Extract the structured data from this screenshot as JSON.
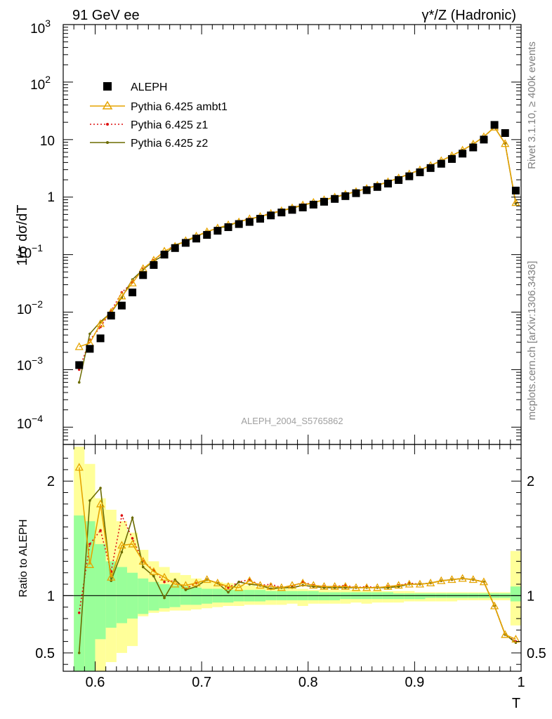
{
  "chart_data": [
    {
      "type": "scatter",
      "yscale": "log",
      "title_left": "91 GeV ee",
      "title_right": "γ*/Z (Hadronic)",
      "ylabel": "1/σ  dσ/dT",
      "xlim": [
        0.57,
        1.0
      ],
      "ylim": [
        5e-05,
        1000
      ],
      "grid": false,
      "legend_position": "top-left",
      "legend": [
        "ALEPH",
        "Pythia 6.425 ambt1",
        "Pythia 6.425 z1",
        "Pythia 6.425 z2"
      ],
      "ytick_labels": {
        "e3": "10",
        "e3sup": "3",
        "e2": "10",
        "e2sup": "2",
        "e1": "10",
        "e0": "1",
        "m1": "10",
        "m1sup": "−1",
        "m2": "10",
        "m2sup": "−2",
        "m3": "10",
        "m3sup": "−3",
        "m4": "10",
        "m4sup": "−4"
      },
      "watermark": "ALEPH_2004_S5765862",
      "side_label_top": "Rivet 3.1.10, ≥ 400k events",
      "side_label_bottom": "mcplots.cern.ch [arXiv:1306.3436]",
      "x": [
        0.585,
        0.595,
        0.605,
        0.615,
        0.625,
        0.635,
        0.645,
        0.655,
        0.665,
        0.675,
        0.685,
        0.695,
        0.705,
        0.715,
        0.725,
        0.735,
        0.745,
        0.755,
        0.765,
        0.775,
        0.785,
        0.795,
        0.805,
        0.815,
        0.825,
        0.835,
        0.845,
        0.855,
        0.865,
        0.875,
        0.885,
        0.895,
        0.905,
        0.915,
        0.925,
        0.935,
        0.945,
        0.955,
        0.965,
        0.975,
        0.985,
        0.995
      ],
      "series": [
        {
          "name": "ALEPH",
          "color": "#000000",
          "marker": "square",
          "values": [
            0.0012,
            0.0023,
            0.0035,
            0.0087,
            0.013,
            0.022,
            0.044,
            0.066,
            0.1,
            0.13,
            0.16,
            0.19,
            0.22,
            0.26,
            0.3,
            0.34,
            0.37,
            0.42,
            0.48,
            0.54,
            0.6,
            0.66,
            0.74,
            0.83,
            0.93,
            1.04,
            1.17,
            1.32,
            1.5,
            1.72,
            1.98,
            2.3,
            2.7,
            3.2,
            3.8,
            4.6,
            5.7,
            7.3,
            10,
            18,
            13,
            1.3
          ]
        },
        {
          "name": "Pythia 6.425 ambt1",
          "color": "#e6a400",
          "marker": "triangle",
          "values": [
            0.0025,
            0.0029,
            0.0063,
            0.01,
            0.019,
            0.032,
            0.057,
            0.08,
            0.115,
            0.14,
            0.175,
            0.21,
            0.25,
            0.29,
            0.33,
            0.37,
            0.42,
            0.46,
            0.52,
            0.58,
            0.65,
            0.73,
            0.81,
            0.9,
            1.0,
            1.12,
            1.25,
            1.41,
            1.6,
            1.85,
            2.15,
            2.53,
            2.97,
            3.55,
            4.3,
            5.25,
            6.55,
            8.35,
            11.2,
            16.4,
            8.5,
            0.8
          ]
        },
        {
          "name": "Pythia 6.425 z1",
          "color": "#dd1111",
          "marker": "dot",
          "values": [
            0.001,
            0.0033,
            0.0055,
            0.0105,
            0.022,
            0.033,
            0.057,
            0.08,
            0.112,
            0.147,
            0.17,
            0.21,
            0.25,
            0.29,
            0.32,
            0.38,
            0.42,
            0.46,
            0.53,
            0.58,
            0.65,
            0.74,
            0.81,
            0.9,
            1.0,
            1.13,
            1.25,
            1.42,
            1.61,
            1.85,
            2.15,
            2.55,
            2.97,
            3.55,
            4.3,
            5.25,
            6.55,
            8.35,
            11.2,
            16.4,
            8.6,
            0.78
          ]
        },
        {
          "name": "Pythia 6.425 z2",
          "color": "#6b6b00",
          "marker": "dot",
          "values": [
            0.0006,
            0.0042,
            0.0068,
            0.0098,
            0.018,
            0.037,
            0.055,
            0.077,
            0.098,
            0.148,
            0.168,
            0.205,
            0.25,
            0.29,
            0.31,
            0.38,
            0.41,
            0.46,
            0.51,
            0.58,
            0.64,
            0.72,
            0.8,
            0.89,
            0.99,
            1.11,
            1.25,
            1.41,
            1.6,
            1.84,
            2.14,
            2.52,
            2.96,
            3.55,
            4.3,
            5.25,
            6.55,
            8.35,
            11.2,
            16.4,
            8.5,
            0.77
          ]
        }
      ]
    },
    {
      "type": "line",
      "ylabel": "Ratio to ALEPH",
      "xlabel": "T",
      "xlim": [
        0.57,
        1.0
      ],
      "ylim": [
        0.34,
        2.32
      ],
      "xticks": [
        0.6,
        0.7,
        0.8,
        0.9,
        1.0
      ],
      "xtick_labels": [
        "0.6",
        "0.7",
        "0.8",
        "0.9",
        "1"
      ],
      "yticks": [
        0.5,
        1,
        2
      ],
      "ytick_labels": [
        "0.5",
        "1",
        "2"
      ],
      "band_colors": {
        "inner": "#99ff99",
        "outer": "#ffff99"
      },
      "x": [
        0.585,
        0.595,
        0.605,
        0.615,
        0.625,
        0.635,
        0.645,
        0.655,
        0.665,
        0.675,
        0.685,
        0.695,
        0.705,
        0.715,
        0.725,
        0.735,
        0.745,
        0.755,
        0.765,
        0.775,
        0.785,
        0.795,
        0.805,
        0.815,
        0.825,
        0.835,
        0.845,
        0.855,
        0.865,
        0.875,
        0.885,
        0.895,
        0.905,
        0.915,
        0.925,
        0.935,
        0.945,
        0.955,
        0.965,
        0.975,
        0.985,
        0.995
      ],
      "band_inner_lo": [
        0.3,
        0.3,
        0.62,
        0.72,
        0.76,
        0.8,
        0.84,
        0.87,
        0.89,
        0.9,
        0.92,
        0.92,
        0.93,
        0.94,
        0.94,
        0.95,
        0.95,
        0.95,
        0.96,
        0.96,
        0.96,
        0.96,
        0.96,
        0.96,
        0.96,
        0.97,
        0.97,
        0.97,
        0.97,
        0.97,
        0.97,
        0.97,
        0.97,
        0.98,
        0.98,
        0.98,
        0.98,
        0.98,
        0.98,
        0.98,
        0.98,
        0.95
      ],
      "band_inner_hi": [
        1.7,
        1.65,
        1.45,
        1.3,
        1.25,
        1.2,
        1.15,
        1.12,
        1.1,
        1.09,
        1.08,
        1.07,
        1.06,
        1.06,
        1.05,
        1.05,
        1.05,
        1.05,
        1.04,
        1.04,
        1.04,
        1.04,
        1.04,
        1.03,
        1.03,
        1.03,
        1.03,
        1.03,
        1.03,
        1.03,
        1.02,
        1.02,
        1.02,
        1.02,
        1.02,
        1.02,
        1.02,
        1.02,
        1.02,
        1.02,
        1.02,
        1.08
      ],
      "band_outer_lo": [
        0.3,
        0.3,
        0.3,
        0.42,
        0.5,
        0.56,
        0.82,
        0.85,
        0.86,
        0.87,
        0.87,
        0.88,
        0.89,
        0.9,
        0.91,
        0.91,
        0.92,
        0.92,
        0.92,
        0.92,
        0.93,
        0.91,
        0.93,
        0.93,
        0.93,
        0.93,
        0.94,
        0.93,
        0.94,
        0.94,
        0.94,
        0.95,
        0.95,
        0.95,
        0.95,
        0.95,
        0.96,
        0.96,
        0.96,
        0.96,
        0.96,
        0.74
      ],
      "band_outer_hi": [
        2.3,
        2.15,
        1.85,
        1.75,
        1.65,
        1.55,
        1.4,
        1.3,
        1.25,
        1.2,
        1.18,
        1.15,
        1.13,
        1.12,
        1.11,
        1.1,
        1.09,
        1.08,
        1.07,
        1.07,
        1.06,
        1.06,
        1.05,
        1.05,
        1.05,
        1.05,
        1.05,
        1.04,
        1.04,
        1.04,
        1.04,
        1.04,
        1.03,
        1.03,
        1.03,
        1.03,
        1.03,
        1.03,
        1.03,
        1.03,
        1.03,
        1.39
      ],
      "series": [
        {
          "name": "Pythia 6.425 ambt1",
          "color": "#e6a400",
          "marker": "triangle",
          "values": [
            2.12,
            1.27,
            1.8,
            1.16,
            1.44,
            1.45,
            1.3,
            1.21,
            1.16,
            1.1,
            1.09,
            1.11,
            1.14,
            1.11,
            1.08,
            1.07,
            1.13,
            1.09,
            1.08,
            1.07,
            1.09,
            1.11,
            1.09,
            1.08,
            1.08,
            1.08,
            1.07,
            1.07,
            1.07,
            1.08,
            1.09,
            1.1,
            1.1,
            1.11,
            1.13,
            1.14,
            1.15,
            1.14,
            1.12,
            0.91,
            0.66,
            0.62
          ]
        },
        {
          "name": "Pythia 6.425 z1",
          "color": "#dd1111",
          "marker": "dot",
          "values": [
            0.85,
            1.45,
            1.57,
            1.21,
            1.7,
            1.5,
            1.3,
            1.22,
            1.12,
            1.13,
            1.06,
            1.11,
            1.14,
            1.11,
            1.07,
            1.12,
            1.14,
            1.09,
            1.1,
            1.07,
            1.08,
            1.12,
            1.09,
            1.08,
            1.08,
            1.09,
            1.07,
            1.08,
            1.07,
            1.08,
            1.09,
            1.11,
            1.1,
            1.11,
            1.13,
            1.14,
            1.15,
            1.14,
            1.12,
            0.91,
            0.66,
            0.6
          ]
        },
        {
          "name": "Pythia 6.425 z2",
          "color": "#6b6b00",
          "marker": "dot",
          "values": [
            0.5,
            1.83,
            1.94,
            1.13,
            1.38,
            1.68,
            1.25,
            1.17,
            0.98,
            1.14,
            1.05,
            1.08,
            1.14,
            1.11,
            1.03,
            1.12,
            1.1,
            1.09,
            1.06,
            1.07,
            1.07,
            1.09,
            1.08,
            1.07,
            1.07,
            1.07,
            1.07,
            1.07,
            1.07,
            1.07,
            1.08,
            1.1,
            1.1,
            1.11,
            1.13,
            1.14,
            1.15,
            1.14,
            1.12,
            0.91,
            0.66,
            0.59
          ]
        }
      ],
      "baseline": 1
    }
  ]
}
